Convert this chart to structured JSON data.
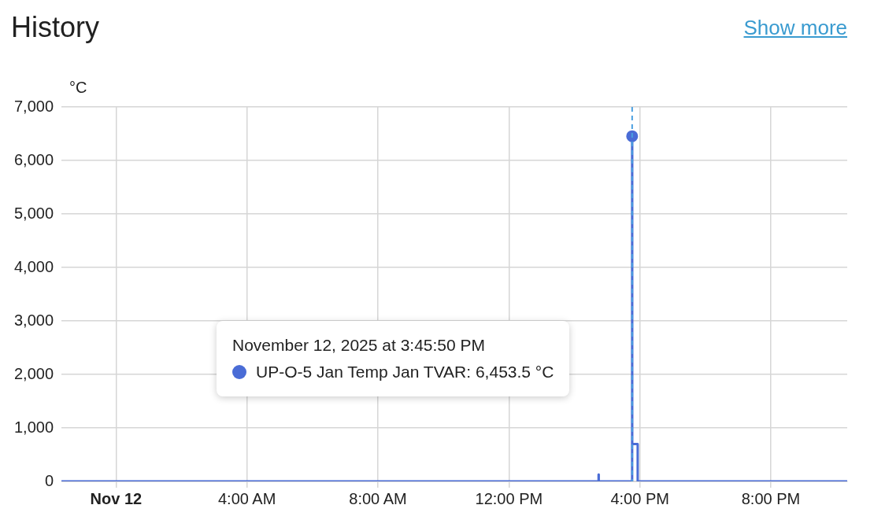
{
  "chart_data": {
    "type": "step",
    "title": "History",
    "ylabel": "°C",
    "annotations": [
      "Show more",
      "November 12, 2025 at 3:45:50 PM\nUP-O-5 Jan Temp Jan TVAR: 6,453.5 °C"
    ],
    "x": [
      "2025-11-11T22:20",
      "2025-11-12T14:44",
      "2025-11-12T14:44:20",
      "2025-11-12T14:44:40",
      "2025-11-12T15:45:50",
      "2025-11-12T15:46",
      "2025-11-12T15:56",
      "2025-11-12T22:20"
    ],
    "series": [
      {
        "color": "#4a6cd6",
        "values": [
          0,
          0,
          130,
          0,
          6453.5,
          700,
          0,
          0
        ]
      }
    ],
    "xlim": [
      "2025-11-11T22:20",
      "2025-11-12T22:20"
    ],
    "xticks": [
      {
        "value": "2025-11-12T00:00",
        "label": "Nov 12"
      },
      {
        "value": "2025-11-12T04:00",
        "label": "4:00 AM"
      },
      {
        "value": "2025-11-12T08:00",
        "label": "8:00 AM"
      },
      {
        "value": "2025-11-12T12:00",
        "label": "12:00 PM"
      },
      {
        "value": "2025-11-12T16:00",
        "label": "4:00 PM"
      },
      {
        "value": "2025-11-12T20:00",
        "label": "8:00 PM"
      }
    ],
    "ylim": [
      0,
      7000
    ],
    "yticks": [
      0,
      {
        "value": 1000,
        "label": "1,000"
      },
      {
        "value": 2000,
        "label": "2,000"
      },
      {
        "value": 3000,
        "label": "3,000"
      },
      {
        "value": 4000,
        "label": "4,000"
      },
      {
        "value": 5000,
        "label": "5,000"
      },
      {
        "value": 6000,
        "label": "6,000"
      },
      {
        "value": 7000,
        "label": "7,000"
      }
    ],
    "ref_lines": [
      {
        "axis": "x",
        "value": "2025-11-12T15:45:50",
        "color": "#4a9fe0",
        "line_style": "dashed"
      }
    ],
    "grid": true,
    "legend": false,
    "marker": "none",
    "line_style": "solid"
  }
}
